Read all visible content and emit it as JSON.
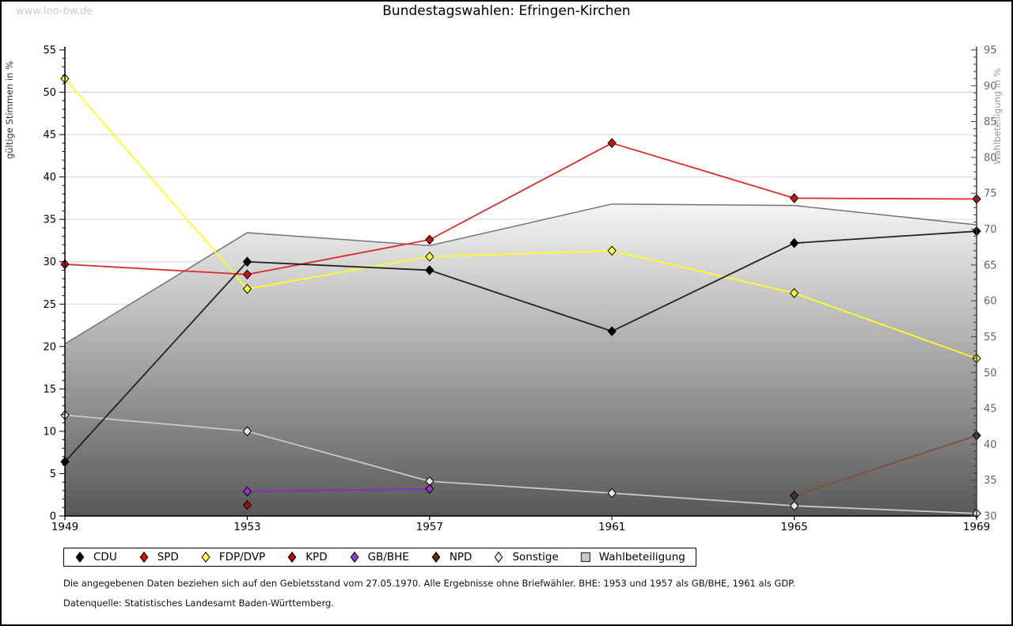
{
  "watermark": "www.leo-bw.de",
  "title": "Bundestagswahlen: Efringen-Kirchen",
  "footnotes": {
    "line1": "Die angegebenen Daten beziehen sich auf den Gebietsstand vom 27.05.1970. Alle Ergebnisse ohne Briefwähler. BHE: 1953 und 1957 als GB/BHE, 1961 als GDP.",
    "line2": "Datenquelle: Statistisches Landesamt Baden-Württemberg."
  },
  "chart_data": {
    "type": "line",
    "title": "Bundestagswahlen: Efringen-Kirchen",
    "x": [
      1949,
      1953,
      1957,
      1961,
      1965,
      1969
    ],
    "left_axis": {
      "label": "gültige Stimmen in %",
      "min": 0,
      "max": 55,
      "tick_step": 5,
      "minor_step": 1
    },
    "right_axis": {
      "label": "Wahlbeteiligung in %",
      "min": 30,
      "max": 95,
      "tick_step": 5,
      "minor_step": 1
    },
    "grid": true,
    "legend_position": "bottom",
    "series": [
      {
        "name": "CDU",
        "axis": "left",
        "marker": "diamond",
        "color": "#000000",
        "line": "#222222",
        "values": [
          6.4,
          30.0,
          29.0,
          21.8,
          32.2,
          33.6
        ]
      },
      {
        "name": "SPD",
        "axis": "left",
        "marker": "diamond",
        "color": "#c90f0f",
        "line": "#db2c2c",
        "values": [
          29.7,
          28.5,
          32.6,
          44.0,
          37.5,
          37.4
        ]
      },
      {
        "name": "FDP/DVP",
        "axis": "left",
        "marker": "diamond",
        "color": "#ffff33",
        "line": "#ffff22",
        "values": [
          51.6,
          26.8,
          30.6,
          31.3,
          26.3,
          18.6
        ]
      },
      {
        "name": "KPD",
        "axis": "left",
        "marker": "diamond",
        "color": "#a50808",
        "line": "#a50808",
        "values": [
          null,
          1.3,
          null,
          null,
          null,
          null
        ]
      },
      {
        "name": "GB/BHE",
        "axis": "left",
        "marker": "diamond",
        "color": "#9933cc",
        "line": "#8a2bc2",
        "values": [
          null,
          2.9,
          3.2,
          null,
          null,
          null
        ]
      },
      {
        "name": "NPD",
        "axis": "left",
        "marker": "diamond",
        "color": "#50301c",
        "line": "#7a5238",
        "values": [
          null,
          null,
          null,
          null,
          2.4,
          9.5
        ]
      },
      {
        "name": "Sonstige",
        "axis": "left",
        "marker": "diamond",
        "color": "#e8e8e8",
        "line": "#c9c9c9",
        "values": [
          11.9,
          10.0,
          4.1,
          2.7,
          1.2,
          0.3
        ]
      },
      {
        "name": "Wahlbeteiligung",
        "axis": "right",
        "marker": "square",
        "type": "area",
        "color": "#c8c8c8",
        "line": "#757575",
        "values": [
          54.0,
          69.5,
          67.7,
          73.5,
          73.3,
          70.6
        ]
      }
    ],
    "area_gradient": {
      "top": "#f7f7f7",
      "bottom": "#585858"
    },
    "grid_color": "#d4d4d4"
  }
}
